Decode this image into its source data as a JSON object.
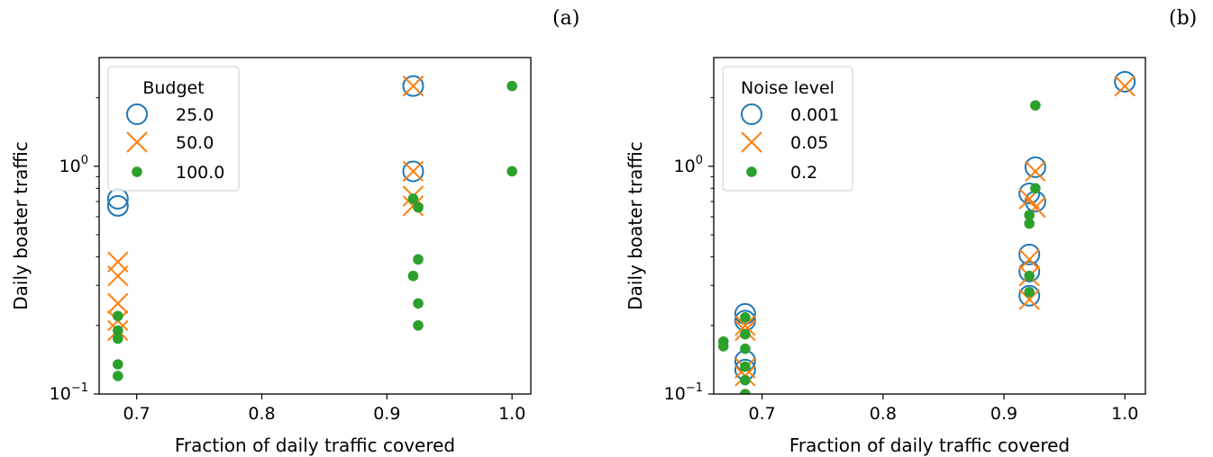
{
  "panel_labels": [
    "(a)",
    "(b)"
  ],
  "colors": {
    "blue": "#1f77b4",
    "orange": "#ff7f0e",
    "green": "#2ca02c"
  },
  "chart_data": [
    {
      "type": "scatter",
      "panel": "(a)",
      "xlabel": "Fraction of daily traffic covered",
      "ylabel": "Daily boater traffic",
      "xlim": [
        0.67,
        1.015
      ],
      "ylim": [
        0.1,
        3.0
      ],
      "yscale": "log",
      "xticks": [
        0.7,
        0.8,
        0.9,
        1.0
      ],
      "xtick_labels": [
        "0.7",
        "0.8",
        "0.9",
        "1.0"
      ],
      "yticks": [
        0.1,
        1.0
      ],
      "ytick_labels": [
        {
          "base": "10",
          "exp": "−1"
        },
        {
          "base": "10",
          "exp": "0"
        }
      ],
      "legend": {
        "title": "Budget",
        "position": "upper-left"
      },
      "series": [
        {
          "name": "25.0",
          "marker": "circle-open",
          "color": "#1f77b4",
          "points": [
            [
              0.685,
              0.72
            ],
            [
              0.685,
              0.67
            ],
            [
              0.921,
              2.25
            ],
            [
              0.921,
              0.95
            ]
          ]
        },
        {
          "name": "50.0",
          "marker": "x",
          "color": "#ff7f0e",
          "points": [
            [
              0.685,
              0.38
            ],
            [
              0.685,
              0.33
            ],
            [
              0.685,
              0.25
            ],
            [
              0.685,
              0.21
            ],
            [
              0.685,
              0.19
            ],
            [
              0.921,
              2.25
            ],
            [
              0.921,
              0.95
            ],
            [
              0.921,
              0.74
            ],
            [
              0.921,
              0.67
            ]
          ]
        },
        {
          "name": "100.0",
          "marker": "dot",
          "color": "#2ca02c",
          "points": [
            [
              0.685,
              0.22
            ],
            [
              0.685,
              0.19
            ],
            [
              0.685,
              0.175
            ],
            [
              0.685,
              0.135
            ],
            [
              0.685,
              0.12
            ],
            [
              0.921,
              0.72
            ],
            [
              0.925,
              0.66
            ],
            [
              0.925,
              0.39
            ],
            [
              0.921,
              0.33
            ],
            [
              0.925,
              0.25
            ],
            [
              0.925,
              0.2
            ],
            [
              1.0,
              2.25
            ],
            [
              1.0,
              0.95
            ]
          ]
        }
      ]
    },
    {
      "type": "scatter",
      "panel": "(b)",
      "xlabel": "Fraction of daily traffic covered",
      "ylabel": "Daily boater traffic",
      "xlim": [
        0.66,
        1.017
      ],
      "ylim": [
        0.1,
        3.0
      ],
      "yscale": "log",
      "xticks": [
        0.7,
        0.8,
        0.9,
        1.0
      ],
      "xtick_labels": [
        "0.7",
        "0.8",
        "0.9",
        "1.0"
      ],
      "yticks": [
        0.1,
        1.0
      ],
      "ytick_labels": [
        {
          "base": "10",
          "exp": "−1"
        },
        {
          "base": "10",
          "exp": "0"
        }
      ],
      "legend": {
        "title": "Noise level",
        "position": "upper-left"
      },
      "series": [
        {
          "name": "0.001",
          "marker": "circle-open",
          "color": "#1f77b4",
          "points": [
            [
              0.686,
              0.225
            ],
            [
              0.686,
              0.21
            ],
            [
              0.686,
              0.14
            ],
            [
              0.686,
              0.128
            ],
            [
              0.921,
              0.76
            ],
            [
              0.926,
              0.99
            ],
            [
              0.926,
              0.7
            ],
            [
              0.921,
              0.41
            ],
            [
              0.921,
              0.345
            ],
            [
              0.921,
              0.27
            ],
            [
              1.0,
              2.35
            ]
          ]
        },
        {
          "name": "0.05",
          "marker": "x",
          "color": "#ff7f0e",
          "points": [
            [
              0.686,
              0.2
            ],
            [
              0.686,
              0.19
            ],
            [
              0.686,
              0.13
            ],
            [
              0.686,
              0.12
            ],
            [
              0.921,
              0.72
            ],
            [
              0.926,
              0.95
            ],
            [
              0.926,
              0.66
            ],
            [
              0.921,
              0.39
            ],
            [
              0.921,
              0.33
            ],
            [
              0.921,
              0.26
            ],
            [
              1.0,
              2.25
            ]
          ]
        },
        {
          "name": "0.2",
          "marker": "dot",
          "color": "#2ca02c",
          "points": [
            [
              0.668,
              0.17
            ],
            [
              0.668,
              0.162
            ],
            [
              0.686,
              0.217
            ],
            [
              0.686,
              0.183
            ],
            [
              0.686,
              0.158
            ],
            [
              0.686,
              0.132
            ],
            [
              0.686,
              0.115
            ],
            [
              0.686,
              0.1
            ],
            [
              0.926,
              1.85
            ],
            [
              0.926,
              0.8
            ],
            [
              0.921,
              0.61
            ],
            [
              0.921,
              0.56
            ],
            [
              0.921,
              0.33
            ],
            [
              0.921,
              0.28
            ]
          ]
        }
      ]
    }
  ]
}
